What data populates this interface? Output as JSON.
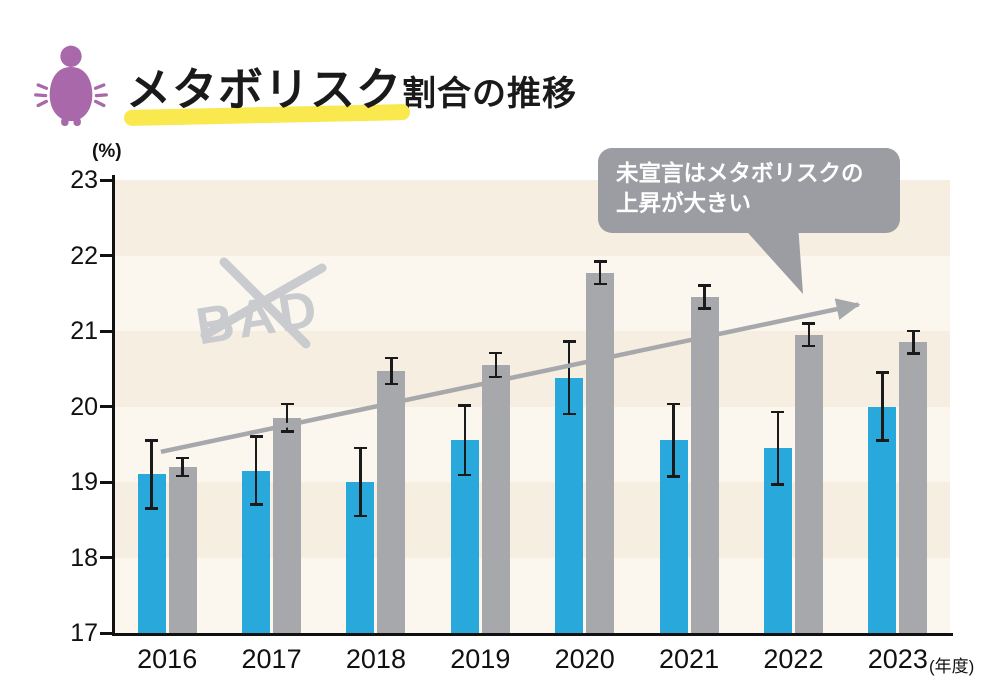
{
  "header": {
    "title_main": "メタボリスク",
    "title_sub": "割合の推移",
    "highlight_color": "#F9E84E",
    "icon_color": "#A868AA"
  },
  "chart_data": {
    "type": "bar",
    "title": "メタボリスク割合の推移",
    "y_unit_label": "(%)",
    "x_suffix": "(年度)",
    "ylim": [
      17,
      23
    ],
    "yticks": [
      23,
      22,
      21,
      20,
      19,
      18,
      17
    ],
    "categories": [
      "2016",
      "2017",
      "2018",
      "2019",
      "2020",
      "2021",
      "2022",
      "2023"
    ],
    "grid": "banded-background",
    "legend": "none",
    "series": [
      {
        "name": "blue",
        "color": "#29A8DC",
        "values": [
          19.1,
          19.15,
          19.0,
          19.55,
          20.38,
          19.55,
          19.45,
          20.0
        ],
        "errors": [
          0.45,
          0.45,
          0.45,
          0.46,
          0.48,
          0.48,
          0.48,
          0.45
        ]
      },
      {
        "name": "gray",
        "color": "#A6A8AB",
        "values": [
          19.2,
          19.85,
          20.47,
          20.55,
          21.77,
          21.45,
          20.95,
          20.85
        ],
        "errors": [
          0.12,
          0.18,
          0.17,
          0.16,
          0.15,
          0.15,
          0.15,
          0.15
        ]
      }
    ],
    "annotations": {
      "bad_text": "BAD",
      "callout_line1": "未宣言はメタボリスクの",
      "callout_line2": "上昇が大きい",
      "trend_arrow": {
        "x1_frac": 0.055,
        "v1": 19.4,
        "x2_frac": 0.9,
        "v2": 21.35
      }
    }
  }
}
